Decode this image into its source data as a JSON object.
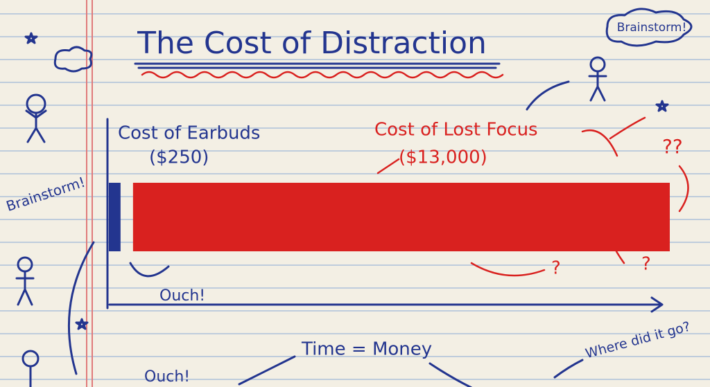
{
  "chart_data": {
    "type": "bar",
    "title": "The Cost of Distraction",
    "categories": [
      "Cost of Earbuds",
      "Cost of Lost Focus"
    ],
    "values": [
      250,
      13000
    ],
    "value_labels": [
      "($250)",
      "($13,000)"
    ],
    "colors": [
      "#23358f",
      "#d9211f"
    ],
    "annotations": [
      "Ouch!",
      "Ouch!",
      "Brainstorm!",
      "Brainstorm!",
      "Time = Money",
      "Where did it go?",
      "??",
      "?",
      "?"
    ]
  }
}
